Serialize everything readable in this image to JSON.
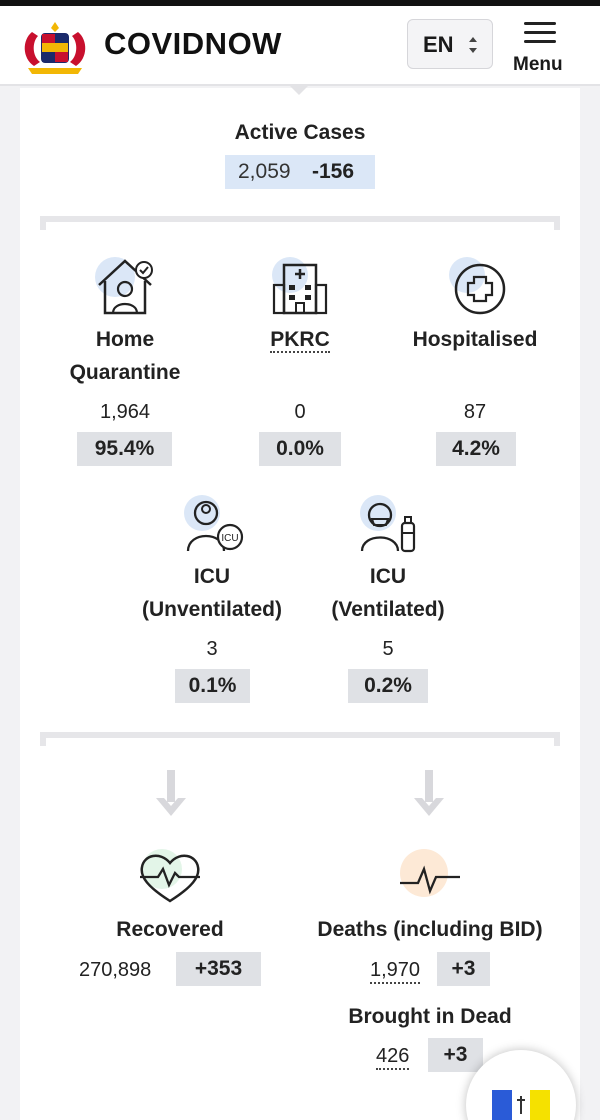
{
  "header": {
    "brand": "COVIDNOW",
    "language": "EN",
    "menu_label": "Menu"
  },
  "active_cases": {
    "label": "Active Cases",
    "value": "2,059",
    "delta": "-156"
  },
  "breakdown": [
    {
      "label_line1": "Home",
      "label_line2": "Quarantine",
      "value": "1,964",
      "percent": "95.4%"
    },
    {
      "label_line1": "PKRC",
      "value": "0",
      "percent": "0.0%"
    },
    {
      "label_line1": "Hospitalised",
      "value": "87",
      "percent": "4.2%"
    },
    {
      "label_line1": "ICU",
      "label_line2": "(Unventilated)",
      "value": "3",
      "percent": "0.1%"
    },
    {
      "label_line1": "ICU",
      "label_line2": "(Ventilated)",
      "value": "5",
      "percent": "0.2%"
    }
  ],
  "outcomes": {
    "recovered": {
      "label": "Recovered",
      "value": "270,898",
      "delta": "+353"
    },
    "deaths": {
      "label": "Deaths (including BID)",
      "value": "1,970",
      "delta": "+3"
    },
    "bid": {
      "label": "Brought in Dead",
      "value": "426",
      "delta": "+3"
    }
  },
  "icons": {
    "logo": "coat-of-arms-icon",
    "home": "home-quarantine-icon",
    "pkrc": "building-icon",
    "hospital": "medical-cross-icon",
    "icu_unvent": "icu-doctor-icon",
    "icu_vent": "ventilator-patient-icon",
    "recovered": "heart-pulse-icon",
    "deaths": "flatline-icon",
    "flag": "state-flag-icon"
  },
  "colors": {
    "active_bg": "#dbe7f7",
    "pill_bg": "#dfe1e5",
    "icon_blue": "#dbe7f7",
    "icon_green": "#e3f5e8",
    "icon_orange": "#fde9d6"
  }
}
